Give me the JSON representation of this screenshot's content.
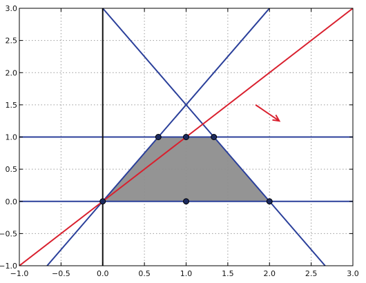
{
  "chart_data": {
    "type": "line",
    "title": "",
    "xlabel": "",
    "ylabel": "",
    "xlim": [
      -1.0,
      3.0
    ],
    "ylim": [
      -1.0,
      3.0
    ],
    "grid": true,
    "x_ticks": [
      -1.0,
      -0.5,
      0.0,
      0.5,
      1.0,
      1.5,
      2.0,
      2.5,
      3.0
    ],
    "y_ticks": [
      -1.0,
      -0.5,
      0.0,
      0.5,
      1.0,
      1.5,
      2.0,
      2.5,
      3.0
    ],
    "x_tick_labels": [
      "−1.0",
      "−0.5",
      "0.0",
      "0.5",
      "1.0",
      "1.5",
      "2.0",
      "2.5",
      "3.0"
    ],
    "y_tick_labels": [
      "−1.0",
      "−0.5",
      "0.0",
      "0.5",
      "1.0",
      "1.5",
      "2.0",
      "2.5",
      "3.0"
    ],
    "constraint_lines": [
      {
        "id": "y-1",
        "points": [
          [
            -1.0,
            1.0
          ],
          [
            3.0,
            1.0
          ]
        ],
        "color": "#2a3f9a"
      },
      {
        "id": "y-0",
        "points": [
          [
            -1.0,
            0.0
          ],
          [
            3.0,
            0.0
          ]
        ],
        "color": "#2a3f9a"
      },
      {
        "id": "y-1.5x",
        "points": [
          [
            -0.667,
            -1.0
          ],
          [
            2.0,
            3.0
          ]
        ],
        "color": "#2a3f9a"
      },
      {
        "id": "y-3-1.5x",
        "points": [
          [
            0.0,
            3.0
          ],
          [
            2.667,
            -1.0
          ]
        ],
        "color": "#2a3f9a"
      },
      {
        "id": "x-0",
        "points": [
          [
            0.0,
            -1.0
          ],
          [
            0.0,
            3.0
          ]
        ],
        "color": "#111111"
      }
    ],
    "objective_line": {
      "points": [
        [
          -1.0,
          -1.0
        ],
        [
          3.0,
          3.0
        ]
      ],
      "color": "#d9202e"
    },
    "direction_arrow": {
      "from": [
        1.833,
        1.5
      ],
      "to": [
        2.117,
        1.25
      ],
      "color": "#d9202e"
    },
    "feasible_region": {
      "vertices": [
        [
          0.0,
          0.0
        ],
        [
          0.667,
          1.0
        ],
        [
          1.333,
          1.0
        ],
        [
          2.0,
          0.0
        ]
      ],
      "fill": "#8e8e8e"
    },
    "points": [
      {
        "x": 0.0,
        "y": 0.0
      },
      {
        "x": 0.667,
        "y": 1.0
      },
      {
        "x": 1.0,
        "y": 1.0
      },
      {
        "x": 1.333,
        "y": 1.0
      },
      {
        "x": 1.0,
        "y": 0.0
      },
      {
        "x": 2.0,
        "y": 0.0
      }
    ],
    "point_color": "#1c2a5e"
  }
}
